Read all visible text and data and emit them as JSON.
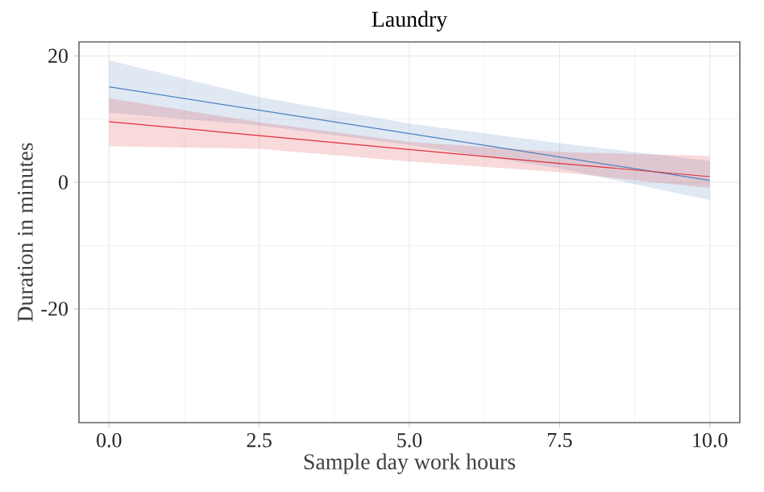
{
  "chart_data": {
    "type": "line",
    "title": "Laundry",
    "xlabel": "Sample day work hours",
    "ylabel": "Duration in minutes",
    "x": [
      0,
      2.5,
      5,
      7.5,
      10
    ],
    "series": [
      {
        "color": "#4f81bd",
        "values": [
          15.1,
          11.4,
          7.7,
          4.0,
          0.3
        ],
        "lower": [
          11,
          9,
          5.9,
          2.2,
          -2.8
        ],
        "upper": [
          19.3,
          13.5,
          9.3,
          6.2,
          3.4
        ]
      },
      {
        "color": "#e0303a",
        "values": [
          9.6,
          7.4,
          5.2,
          3.0,
          0.9
        ],
        "lower": [
          5.7,
          5.3,
          3.3,
          1.6,
          -0.9
        ],
        "upper": [
          13.3,
          9.5,
          6.4,
          4.8,
          4.2
        ]
      }
    ],
    "xlim": [
      -0.5,
      10.5
    ],
    "ylim": [
      -38,
      22.2
    ],
    "xticks": [
      {
        "value": 0,
        "label": "0.0"
      },
      {
        "value": 2.5,
        "label": "2.5"
      },
      {
        "value": 5,
        "label": "5.0"
      },
      {
        "value": 7.5,
        "label": "7.5"
      },
      {
        "value": 10,
        "label": "10.0"
      }
    ],
    "yticks": [
      {
        "value": -20,
        "label": "-20"
      },
      0,
      20
    ],
    "grid": true
  }
}
